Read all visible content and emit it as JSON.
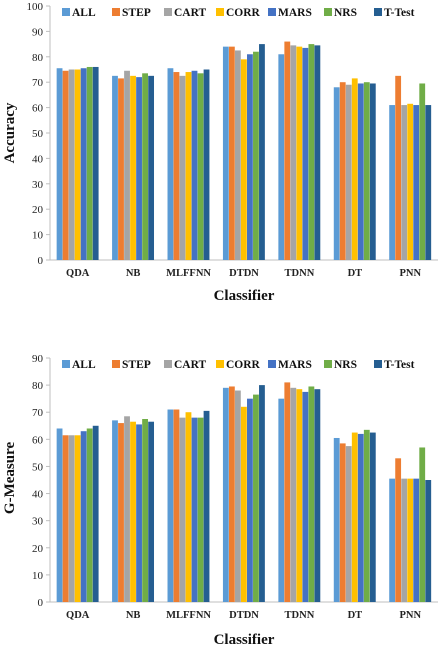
{
  "chart_data": [
    {
      "type": "bar",
      "xlabel": "Classifier",
      "ylabel": "Accuracy",
      "ylim": [
        0,
        100
      ],
      "ytick_step": 10,
      "grid": false,
      "legend": "top",
      "categories": [
        "QDA",
        "NB",
        "MLFFNN",
        "DTDN",
        "TDNN",
        "DT",
        "PNN"
      ],
      "series": [
        {
          "name": "ALL",
          "color": "#5B9BD5",
          "values": [
            75.5,
            72.5,
            75.5,
            84.0,
            81.0,
            68.0,
            61.0
          ]
        },
        {
          "name": "STEP",
          "color": "#ED7D31",
          "values": [
            74.5,
            71.5,
            74.0,
            84.0,
            86.0,
            70.0,
            72.5
          ]
        },
        {
          "name": "CART",
          "color": "#A5A5A5",
          "values": [
            75.0,
            74.5,
            72.5,
            82.5,
            84.5,
            69.0,
            61.0
          ]
        },
        {
          "name": "CORR",
          "color": "#FFC000",
          "values": [
            75.0,
            72.5,
            74.0,
            79.0,
            84.0,
            71.5,
            61.5
          ]
        },
        {
          "name": "MARS",
          "color": "#4472C4",
          "values": [
            75.5,
            72.0,
            74.5,
            81.0,
            83.5,
            69.5,
            61.0
          ]
        },
        {
          "name": "NRS",
          "color": "#70AD47",
          "values": [
            76.0,
            73.5,
            73.5,
            82.0,
            85.0,
            70.0,
            69.5
          ]
        },
        {
          "name": "T-Test",
          "color": "#255E91",
          "values": [
            76.0,
            72.5,
            75.0,
            85.0,
            84.5,
            69.5,
            61.0
          ]
        }
      ]
    },
    {
      "type": "bar",
      "xlabel": "Classifier",
      "ylabel": "G-Measure",
      "ylim": [
        0,
        90
      ],
      "ytick_step": 10,
      "grid": false,
      "legend": "top",
      "categories": [
        "QDA",
        "NB",
        "MLFFNN",
        "DTDN",
        "TDNN",
        "DT",
        "PNN"
      ],
      "series": [
        {
          "name": "ALL",
          "color": "#5B9BD5",
          "values": [
            64.0,
            67.0,
            71.0,
            79.0,
            75.0,
            60.5,
            45.5
          ]
        },
        {
          "name": "STEP",
          "color": "#ED7D31",
          "values": [
            61.5,
            66.0,
            71.0,
            79.5,
            81.0,
            58.5,
            53.0
          ]
        },
        {
          "name": "CART",
          "color": "#A5A5A5",
          "values": [
            61.5,
            68.5,
            68.0,
            78.0,
            79.0,
            57.5,
            45.5
          ]
        },
        {
          "name": "CORR",
          "color": "#FFC000",
          "values": [
            61.5,
            66.5,
            70.0,
            72.0,
            78.5,
            62.5,
            45.5
          ]
        },
        {
          "name": "MARS",
          "color": "#4472C4",
          "values": [
            63.0,
            65.5,
            68.0,
            75.0,
            77.5,
            62.0,
            45.5
          ]
        },
        {
          "name": "NRS",
          "color": "#70AD47",
          "values": [
            64.0,
            67.5,
            68.0,
            76.5,
            79.5,
            63.5,
            57.0
          ]
        },
        {
          "name": "T-Test",
          "color": "#255E91",
          "values": [
            65.0,
            66.5,
            70.5,
            80.0,
            78.5,
            62.5,
            45.0
          ]
        }
      ]
    }
  ]
}
